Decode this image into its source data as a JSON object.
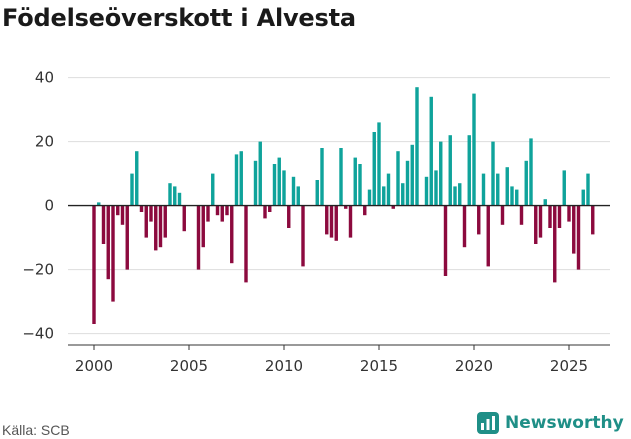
{
  "title": "Födelseöverskott i Alvesta",
  "source": "Källa: SCB",
  "brand": "Newsworthy",
  "colors": {
    "positive": "#0fa39b",
    "negative": "#8c0a3e",
    "grid": "#dddddd",
    "brand": "#1f8f87"
  },
  "chart_data": {
    "type": "bar",
    "title": "Födelseöverskott i Alvesta",
    "xlabel": "",
    "ylabel": "",
    "ylim": [
      -42,
      43
    ],
    "yticks": [
      -40,
      -20,
      0,
      20,
      40
    ],
    "ytick_labels": [
      "−40",
      "−20",
      "0",
      "20",
      "40"
    ],
    "xlim": [
      1999.25,
      2026.5
    ],
    "xticks": [
      2000,
      2005,
      2010,
      2015,
      2020,
      2025
    ],
    "xtick_labels": [
      "2000",
      "2005",
      "2010",
      "2015",
      "2020",
      "2025"
    ],
    "start": 2000.0,
    "step": 0.25,
    "values": [
      -37,
      1,
      -12,
      -23,
      -30,
      -3,
      -6,
      -20,
      10,
      17,
      -2,
      -10,
      -5,
      -14,
      -13,
      -10,
      7,
      6,
      4,
      -8,
      0,
      0,
      -20,
      -13,
      -5,
      10,
      -3,
      -5,
      -3,
      -18,
      16,
      17,
      -24,
      0,
      14,
      20,
      -4,
      -2,
      13,
      15,
      11,
      -7,
      9,
      6,
      -19,
      0,
      0,
      8,
      18,
      -9,
      -10,
      -11,
      18,
      -1,
      -10,
      15,
      13,
      -3,
      5,
      23,
      26,
      6,
      10,
      -1,
      17,
      7,
      14,
      19,
      37,
      0,
      9,
      34,
      11,
      20,
      -22,
      22,
      6,
      7,
      -13,
      22,
      35,
      -9,
      10,
      -19,
      20,
      10,
      -6,
      12,
      6,
      5,
      -6,
      14,
      21,
      -12,
      -10,
      2,
      -7,
      -24,
      -7,
      11,
      -5,
      -15,
      -20,
      5,
      10,
      -9
    ]
  }
}
